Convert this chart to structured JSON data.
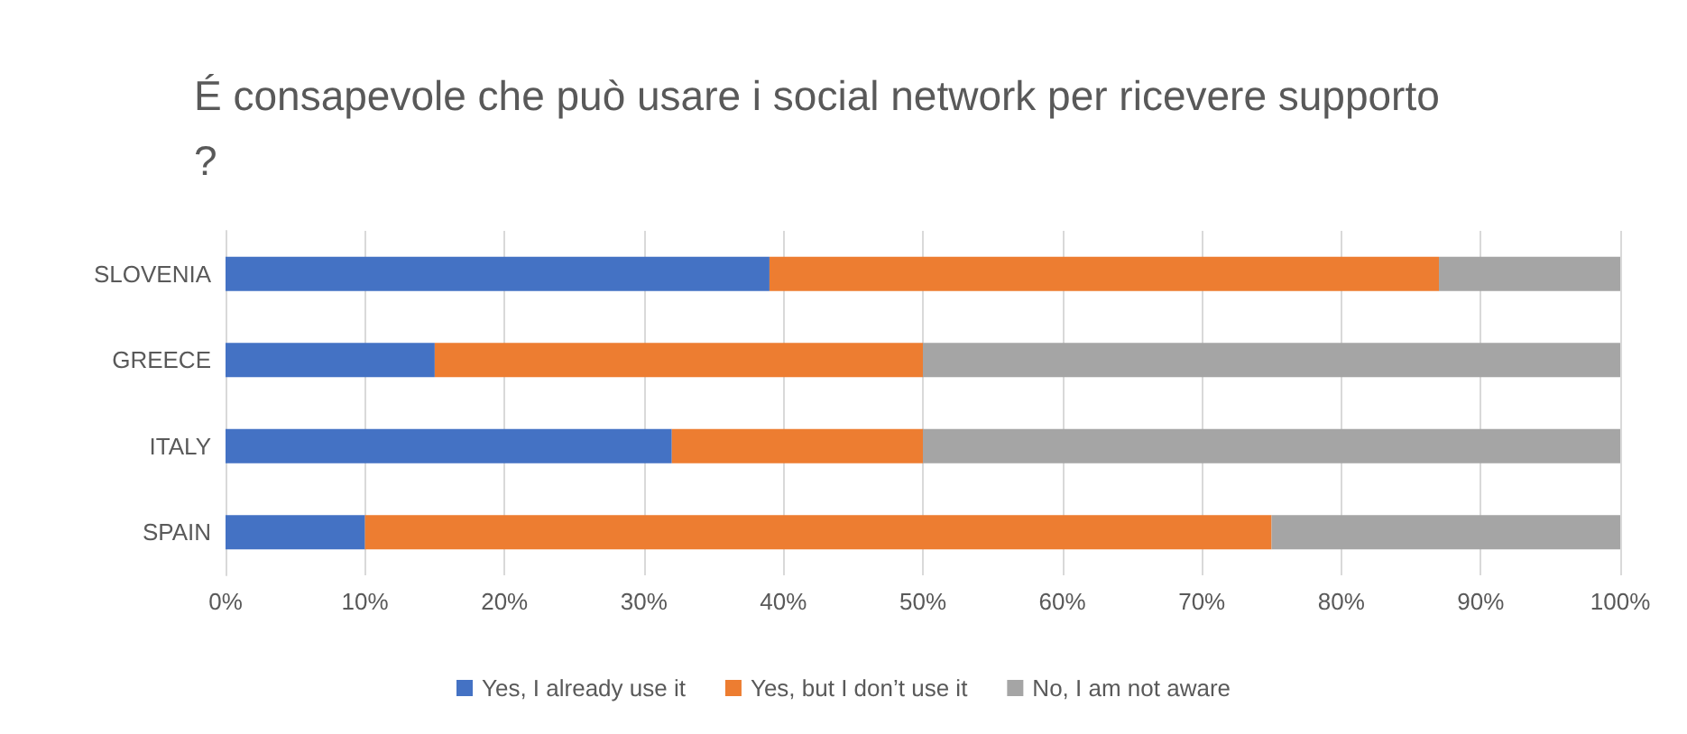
{
  "chart_data": {
    "type": "bar",
    "orientation": "horizontal",
    "stacked": true,
    "title": "É consapevole che può usare i social network per ricevere supporto?",
    "categories": [
      "SLOVENIA",
      "GREECE",
      "ITALY",
      "SPAIN"
    ],
    "series": [
      {
        "name": "Yes, I already use it",
        "color": "#4472c4",
        "values": [
          39,
          15,
          32,
          10
        ]
      },
      {
        "name": "Yes, but I don’t use it",
        "color": "#ed7d31",
        "values": [
          48,
          35,
          18,
          65
        ]
      },
      {
        "name": "No, I am not aware",
        "color": "#a5a5a5",
        "values": [
          13,
          50,
          50,
          25
        ]
      }
    ],
    "xlim": [
      0,
      100
    ],
    "xticks": [
      {
        "value": 0,
        "label": "0%"
      },
      {
        "value": 10,
        "label": "10%"
      },
      {
        "value": 20,
        "label": "20%"
      },
      {
        "value": 30,
        "label": "30%"
      },
      {
        "value": 40,
        "label": "40%"
      },
      {
        "value": 50,
        "label": "50%"
      },
      {
        "value": 60,
        "label": "60%"
      },
      {
        "value": 70,
        "label": "70%"
      },
      {
        "value": 80,
        "label": "80%"
      },
      {
        "value": 90,
        "label": "90%"
      },
      {
        "value": 100,
        "label": "100%"
      }
    ],
    "grid": "x",
    "legend": "bottom"
  }
}
